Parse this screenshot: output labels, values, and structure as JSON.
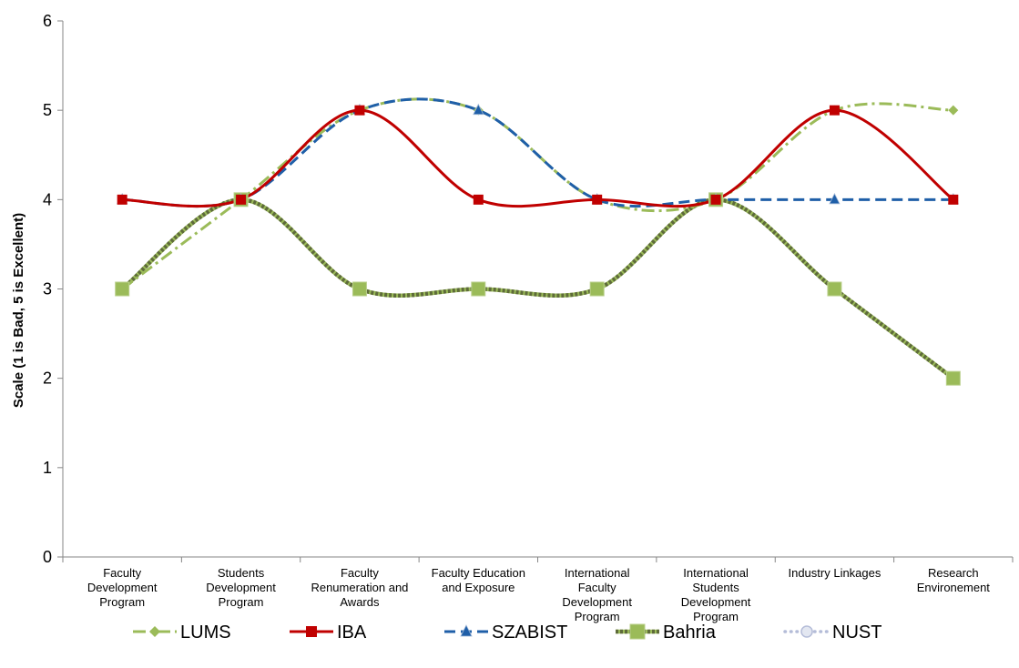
{
  "chart_data": {
    "type": "line",
    "title": "",
    "xlabel": "",
    "ylabel": "Scale (1 is Bad, 5 is Excellent)",
    "ylim": [
      0,
      6
    ],
    "yticks": [
      0,
      1,
      2,
      3,
      4,
      5,
      6
    ],
    "categories": [
      [
        "Faculty",
        "Development",
        "Program"
      ],
      [
        "Students",
        "Development",
        "Program"
      ],
      [
        "Faculty",
        "Renumeration and",
        "Awards"
      ],
      [
        "Faculty Education",
        "and Exposure"
      ],
      [
        "International",
        "Faculty",
        "Development",
        "Program"
      ],
      [
        "International",
        "Students",
        "Development",
        "Program"
      ],
      [
        "Industry Linkages"
      ],
      [
        "Research",
        "Environement"
      ]
    ],
    "grid": false,
    "smooth": true,
    "legend_position": "bottom",
    "series": [
      {
        "name": "LUMS",
        "values": [
          3,
          4,
          5,
          5,
          4,
          4,
          5,
          5
        ],
        "color": "#9BBB59",
        "marker": "diamond",
        "dash": "dashdot"
      },
      {
        "name": "IBA",
        "values": [
          4,
          4,
          5,
          4,
          4,
          4,
          5,
          4
        ],
        "color": "#C00000",
        "marker": "square",
        "dash": "solid"
      },
      {
        "name": "SZABIST",
        "values": [
          4,
          4,
          5,
          5,
          4,
          4,
          4,
          4
        ],
        "color": "#1F5FA8",
        "marker": "triangle",
        "dash": "dash"
      },
      {
        "name": "Bahria",
        "values": [
          3,
          4,
          3,
          3,
          3,
          4,
          3,
          2
        ],
        "color": "#5E6B3A",
        "marker": "square",
        "dash": "stripe",
        "markerColor": "#9BBB59"
      },
      {
        "name": "NUST",
        "values": [
          3,
          4,
          3,
          3,
          3,
          4,
          3,
          2
        ],
        "color": "#B4BCD8",
        "marker": "circle",
        "dash": "dot"
      }
    ]
  }
}
